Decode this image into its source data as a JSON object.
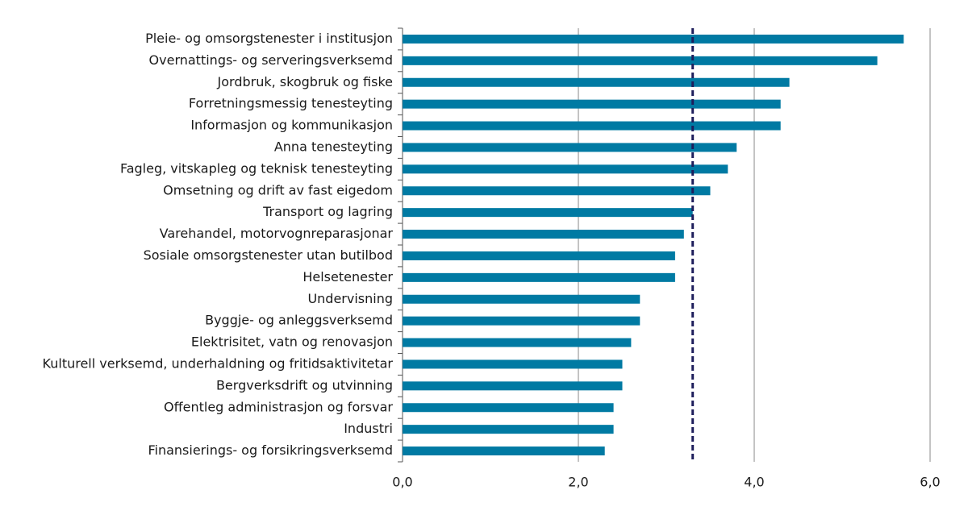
{
  "chart_data": {
    "type": "bar",
    "orientation": "horizontal",
    "categories": [
      "Pleie- og omsorgstenester i institusjon",
      "Overnattings- og serveringsverksemd",
      "Jordbruk, skogbruk og fiske",
      "Forretningsmessig tenesteyting",
      "Informasjon og kommunikasjon",
      "Anna tenesteyting",
      "Fagleg, vitskapleg og teknisk tenesteyting",
      "Omsetning og drift av fast eigedom",
      "Transport og lagring",
      "Varehandel, motorvognreparasjonar",
      "Sosiale omsorgstenester utan butilbod",
      "Helsetenester",
      "Undervisning",
      "Byggje- og anleggsverksemd",
      "Elektrisitet, vatn og renovasjon",
      "Kulturell verksemd, underhaldning og fritidsaktivitetar",
      "Bergverksdrift og utvinning",
      "Offentleg administrasjon og forsvar",
      "Industri",
      "Finansierings- og forsikringsverksemd"
    ],
    "values": [
      5.7,
      5.4,
      4.4,
      4.3,
      4.3,
      3.8,
      3.7,
      3.5,
      3.3,
      3.2,
      3.1,
      3.1,
      2.7,
      2.7,
      2.6,
      2.5,
      2.5,
      2.4,
      2.4,
      2.3
    ],
    "color": "#007aa3",
    "reference_line": 3.3,
    "reference_color": "#1e1e5c",
    "xlim": [
      0,
      6
    ],
    "xticks": [
      {
        "value": 0,
        "label": "0,0"
      },
      {
        "value": 2,
        "label": "2,0"
      },
      {
        "value": 4,
        "label": "4,0"
      },
      {
        "value": 6,
        "label": "6,0"
      }
    ],
    "grid": true
  }
}
